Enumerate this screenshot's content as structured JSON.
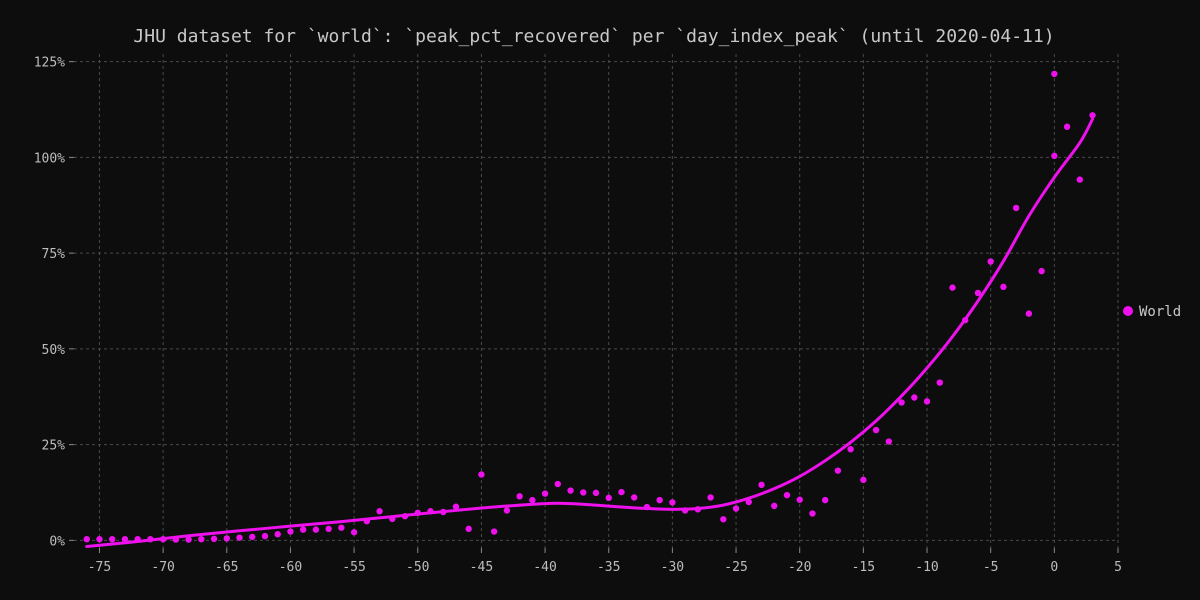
{
  "chart_data": {
    "type": "scatter",
    "title": "JHU dataset for `world`: `peak_pct_recovered` per `day_index_peak` (until 2020-04-11)",
    "xlabel": "",
    "ylabel": "",
    "xlim": [
      -77,
      5
    ],
    "ylim": [
      -2,
      127
    ],
    "x_ticks": [
      -75,
      -70,
      -65,
      -60,
      -55,
      -50,
      -45,
      -40,
      -35,
      -30,
      -25,
      -20,
      -15,
      -10,
      -5,
      0,
      5
    ],
    "x_tick_labels": [
      "-75",
      "-70",
      "-65",
      "-60",
      "-55",
      "-50",
      "-45",
      "-40",
      "-35",
      "-30",
      "-25",
      "-20",
      "-15",
      "-10",
      "-5",
      "0",
      "5"
    ],
    "y_ticks": [
      0,
      25,
      50,
      75,
      100,
      125
    ],
    "y_tick_labels": [
      "0%",
      "25%",
      "50%",
      "75%",
      "100%",
      "125%"
    ],
    "grid": true,
    "legend_position": "right",
    "series": [
      {
        "name": "World",
        "color": "#ee11ee",
        "points": [
          [
            -76,
            0.3
          ],
          [
            -75,
            0.3
          ],
          [
            -74,
            0.3
          ],
          [
            -73,
            0.3
          ],
          [
            -72,
            0.3
          ],
          [
            -71,
            0.3
          ],
          [
            -70,
            0.3
          ],
          [
            -69,
            0.2
          ],
          [
            -68,
            0.2
          ],
          [
            -67,
            0.3
          ],
          [
            -66,
            0.4
          ],
          [
            -65,
            0.5
          ],
          [
            -64,
            0.7
          ],
          [
            -63,
            0.9
          ],
          [
            -62,
            1.1
          ],
          [
            -61,
            1.6
          ],
          [
            -60,
            2.3
          ],
          [
            -59,
            2.8
          ],
          [
            -58,
            2.8
          ],
          [
            -57,
            3.0
          ],
          [
            -56,
            3.3
          ],
          [
            -55,
            2.1
          ],
          [
            -54,
            5.0
          ],
          [
            -53,
            7.6
          ],
          [
            -52,
            5.6
          ],
          [
            -51,
            6.3
          ],
          [
            -50,
            7.2
          ],
          [
            -49,
            7.6
          ],
          [
            -48,
            7.4
          ],
          [
            -47,
            8.8
          ],
          [
            -46,
            3.0
          ],
          [
            -45,
            17.2
          ],
          [
            -44,
            2.3
          ],
          [
            -43,
            7.8
          ],
          [
            -42,
            11.5
          ],
          [
            -41,
            10.5
          ],
          [
            -40,
            12.2
          ],
          [
            -39,
            14.7
          ],
          [
            -38,
            13.0
          ],
          [
            -37,
            12.5
          ],
          [
            -36,
            12.4
          ],
          [
            -35,
            11.1
          ],
          [
            -34,
            12.6
          ],
          [
            -33,
            11.2
          ],
          [
            -32,
            8.7
          ],
          [
            -31,
            10.5
          ],
          [
            -30,
            9.9
          ],
          [
            -29,
            7.8
          ],
          [
            -28,
            8.1
          ],
          [
            -27,
            11.2
          ],
          [
            -26,
            5.5
          ],
          [
            -25,
            8.3
          ],
          [
            -24,
            10.0
          ],
          [
            -23,
            14.5
          ],
          [
            -22,
            9.0
          ],
          [
            -21,
            11.8
          ],
          [
            -20,
            10.6
          ],
          [
            -19,
            7.0
          ],
          [
            -18,
            10.5
          ],
          [
            -17,
            18.2
          ],
          [
            -16,
            23.8
          ],
          [
            -15,
            15.8
          ],
          [
            -14,
            28.8
          ],
          [
            -13,
            25.8
          ],
          [
            -12,
            36.0
          ],
          [
            -11,
            37.3
          ],
          [
            -10,
            36.3
          ],
          [
            -9,
            41.2
          ],
          [
            -8,
            66.0
          ],
          [
            -7,
            57.5
          ],
          [
            -6,
            64.6
          ],
          [
            -5,
            72.8
          ],
          [
            -4,
            66.2
          ],
          [
            -3,
            86.8
          ],
          [
            -2,
            59.2
          ],
          [
            -1,
            70.3
          ],
          [
            0,
            121.8
          ],
          [
            0,
            100.4
          ],
          [
            1,
            108.0
          ],
          [
            2,
            94.2
          ],
          [
            3,
            111.0
          ]
        ],
        "trend": [
          [
            -76,
            -1.6
          ],
          [
            -72,
            -0.3
          ],
          [
            -68,
            1.2
          ],
          [
            -64,
            2.5
          ],
          [
            -60,
            3.7
          ],
          [
            -56,
            4.9
          ],
          [
            -52,
            6.2
          ],
          [
            -48,
            7.5
          ],
          [
            -44,
            8.7
          ],
          [
            -40,
            9.6
          ],
          [
            -38,
            9.6
          ],
          [
            -36,
            9.2
          ],
          [
            -34,
            8.7
          ],
          [
            -32,
            8.3
          ],
          [
            -30,
            8.1
          ],
          [
            -28,
            8.3
          ],
          [
            -26,
            9.2
          ],
          [
            -24,
            11.0
          ],
          [
            -22,
            13.5
          ],
          [
            -20,
            16.7
          ],
          [
            -18,
            20.8
          ],
          [
            -16,
            25.6
          ],
          [
            -14,
            31.2
          ],
          [
            -12,
            37.7
          ],
          [
            -10,
            45.0
          ],
          [
            -8,
            53.2
          ],
          [
            -6,
            62.5
          ],
          [
            -4,
            72.9
          ],
          [
            -2,
            84.7
          ],
          [
            0,
            94.8
          ],
          [
            2,
            103.8
          ],
          [
            3,
            110.0
          ]
        ]
      }
    ]
  }
}
